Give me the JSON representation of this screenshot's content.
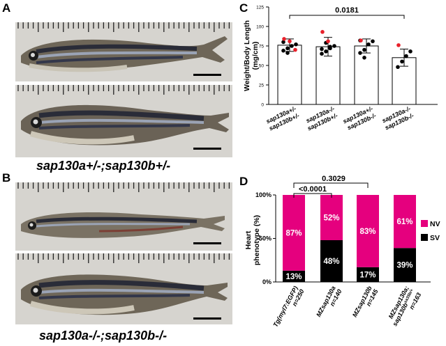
{
  "panels": {
    "A": {
      "letter": "A",
      "caption": "sap130a+/-;sap130b+/-"
    },
    "B": {
      "letter": "B",
      "caption": "sap130a-/-;sap130b-/-"
    },
    "C": {
      "letter": "C"
    },
    "D": {
      "letter": "D"
    }
  },
  "colors": {
    "magenta": "#e5007e",
    "black": "#000000",
    "red_dot": "#e8202a",
    "photo_bg": "#d9d7d2"
  },
  "chart_data": [
    {
      "type": "scatter",
      "panel": "C",
      "ylabel": "Weight/Body Length\n(mg/cm)",
      "ylim": [
        0,
        125
      ],
      "yticks": [
        "0",
        "25",
        "50",
        "75",
        "100",
        "125"
      ],
      "groups": [
        {
          "label_line1": "sap130a+/-",
          "label_line2": "sap130b+/-",
          "mean": 76,
          "sd": 8,
          "black_points": [
            69,
            72,
            75,
            77,
            80,
            66
          ],
          "red_points": [
            84,
            81,
            70
          ]
        },
        {
          "label_line1": "sap130a-/-",
          "label_line2": "sap130b+/-",
          "mean": 74,
          "sd": 12,
          "black_points": [
            65,
            68,
            72,
            75,
            71,
            79,
            74
          ],
          "red_points": [
            93,
            81
          ]
        },
        {
          "label_line1": "sap130a+/-",
          "label_line2": "sap130b-/-",
          "mean": 75,
          "sd": 9,
          "black_points": [
            66,
            70,
            77,
            81,
            82,
            60
          ],
          "red_points": [
            82
          ]
        },
        {
          "label_line1": "sap130a-/-",
          "label_line2": "sap130b-/-",
          "mean": 60,
          "sd": 11,
          "black_points": [
            48,
            55,
            62,
            68
          ],
          "red_points": [
            76
          ]
        }
      ],
      "comparison": {
        "from": 0,
        "to": 3,
        "label": "0.0181"
      }
    },
    {
      "type": "bar",
      "panel": "D",
      "stacked": true,
      "ylabel": "Heart\nphenotype (%)",
      "yticks": [
        "0%",
        "50%",
        "100%"
      ],
      "legend": [
        "NV",
        "SV"
      ],
      "categories": [
        {
          "line1": "Tg(myl7:EGFP)",
          "line2": "n=250"
        },
        {
          "line1": "MZsap130a",
          "line2": "n=140"
        },
        {
          "line1": "MZsap130b",
          "line2": "n=145"
        },
        {
          "line1": "MZsap130a;",
          "line2": "sap130b",
          "sup": "sa35b/+",
          "line3": "n=163"
        }
      ],
      "series": [
        {
          "name": "SV",
          "values": [
            13,
            48,
            17,
            39
          ],
          "labels": [
            "13%",
            "48%",
            "17%",
            "39%"
          ]
        },
        {
          "name": "NV",
          "values": [
            87,
            52,
            83,
            61
          ],
          "labels": [
            "87%",
            "52%",
            "83%",
            "61%"
          ]
        }
      ],
      "comparisons": [
        {
          "from": 0,
          "to": 2,
          "label": "0.3029"
        },
        {
          "from": 0,
          "to": 1,
          "label": "<0.0001"
        }
      ]
    }
  ]
}
